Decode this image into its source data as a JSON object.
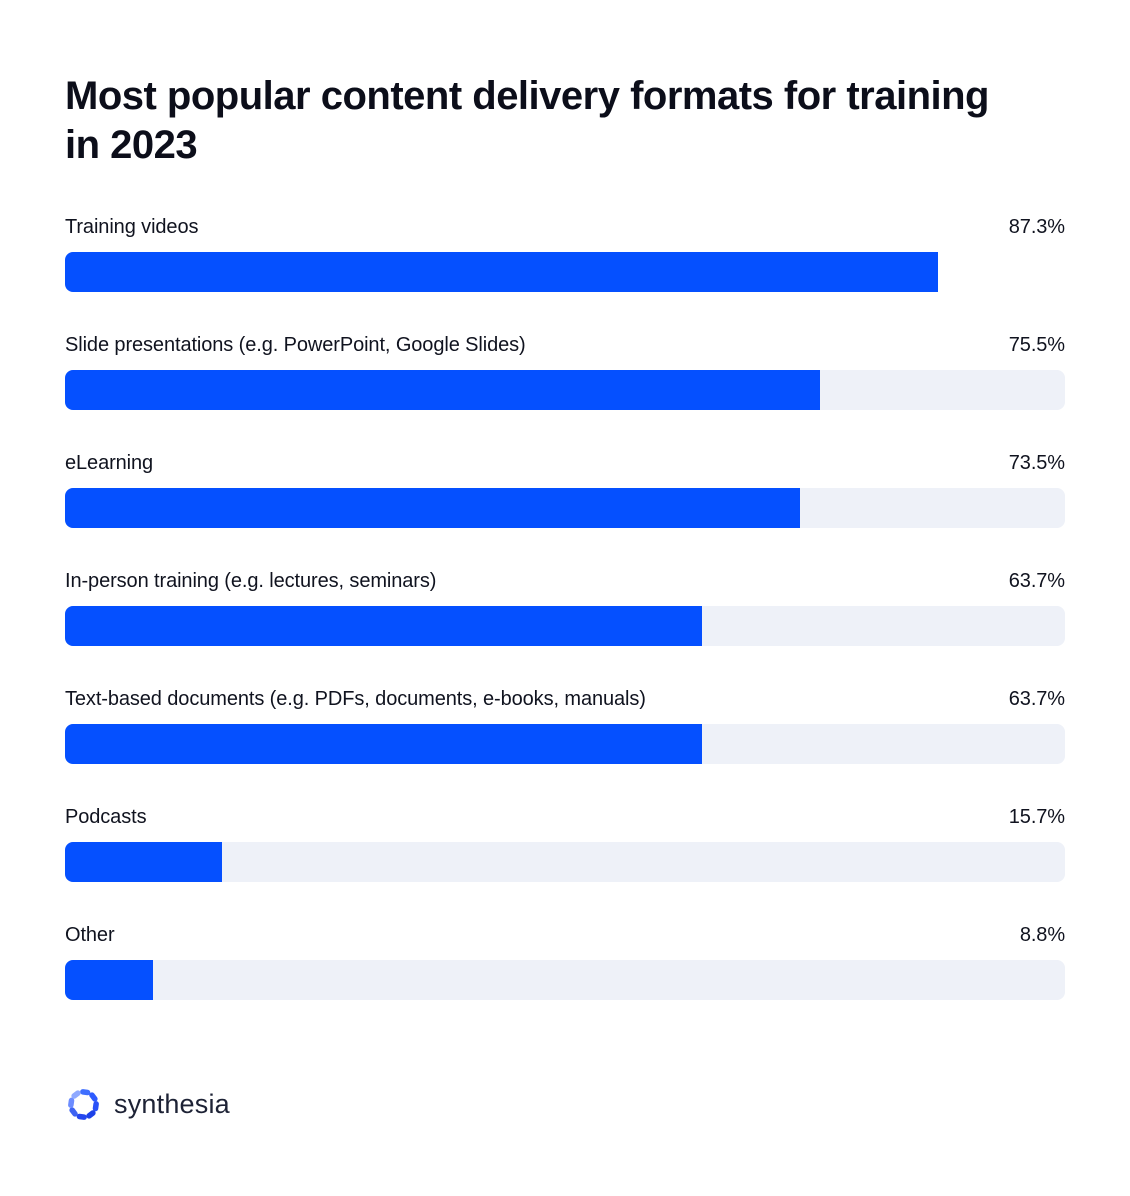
{
  "title": "Most popular content delivery formats for training in 2023",
  "chart_data": {
    "type": "bar",
    "orientation": "horizontal",
    "unit": "%",
    "value_axis_range": [
      0,
      100
    ],
    "grid": false,
    "legend": false,
    "bar_color": "#0550ff",
    "track_color": "#eef1f8",
    "categories": [
      "Training videos",
      "Slide presentations (e.g. PowerPoint, Google Slides)",
      "eLearning",
      "In-person training (e.g. lectures, seminars)",
      "Text-based documents (e.g. PDFs, documents, e-books, manuals)",
      "Podcasts",
      "Other"
    ],
    "values": [
      87.3,
      75.5,
      73.5,
      63.7,
      63.7,
      15.7,
      8.8
    ],
    "rows": [
      {
        "label": "Training videos",
        "value": 87.3,
        "display": "87.3%",
        "track": false
      },
      {
        "label": "Slide presentations (e.g. PowerPoint, Google Slides)",
        "value": 75.5,
        "display": "75.5%",
        "track": true
      },
      {
        "label": "eLearning",
        "value": 73.5,
        "display": "73.5%",
        "track": true
      },
      {
        "label": "In-person training (e.g. lectures, seminars)",
        "value": 63.7,
        "display": "63.7%",
        "track": true
      },
      {
        "label": "Text-based documents (e.g. PDFs, documents, e-books, manuals)",
        "value": 63.7,
        "display": "63.7%",
        "track": true
      },
      {
        "label": "Podcasts",
        "value": 15.7,
        "display": "15.7%",
        "track": true
      },
      {
        "label": "Other",
        "value": 8.8,
        "display": "8.8%",
        "track": true
      }
    ]
  },
  "footer": {
    "brand": "synthesia",
    "logo_icon": "synthesia-octagon-icon",
    "logo_petal_colors": [
      "#3f6fff",
      "#2e5bff",
      "#2a52f7",
      "#1d41e8",
      "#2547ef",
      "#3e63f2",
      "#6c8cff",
      "#8fa9ff"
    ]
  }
}
